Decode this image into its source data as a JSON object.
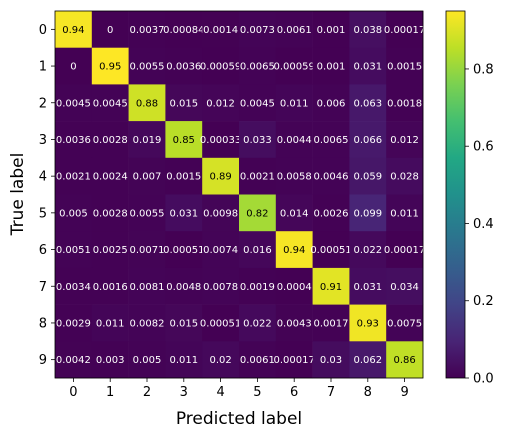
{
  "chart_data": {
    "type": "heatmap",
    "title": "",
    "xlabel": "Predicted label",
    "ylabel": "True label",
    "x_categories": [
      "0",
      "1",
      "2",
      "3",
      "4",
      "5",
      "6",
      "7",
      "8",
      "9"
    ],
    "y_categories": [
      "0",
      "1",
      "2",
      "3",
      "4",
      "5",
      "6",
      "7",
      "8",
      "9"
    ],
    "colormap": "viridis",
    "clim": [
      0,
      0.95
    ],
    "colorbar_ticks": [
      "0.0",
      "0.2",
      "0.4",
      "0.6",
      "0.8"
    ],
    "colorbar_tick_values": [
      0.0,
      0.2,
      0.4,
      0.6,
      0.8
    ],
    "values": [
      [
        0.94,
        0,
        0.0037,
        0.00084,
        0.0014,
        0.0073,
        0.0061,
        0.001,
        0.038,
        0.00017
      ],
      [
        0,
        0.95,
        0.0055,
        0.0036,
        0.00059,
        0.0065,
        0.00059,
        0.001,
        0.031,
        0.0015
      ],
      [
        0.0045,
        0.0045,
        0.88,
        0.015,
        0.012,
        0.0045,
        0.011,
        0.006,
        0.063,
        0.0018
      ],
      [
        0.0036,
        0.0028,
        0.019,
        0.85,
        0.00033,
        0.033,
        0.0044,
        0.0065,
        0.066,
        0.012
      ],
      [
        0.0021,
        0.0024,
        0.007,
        0.0015,
        0.89,
        0.0021,
        0.0058,
        0.0046,
        0.059,
        0.028
      ],
      [
        0.005,
        0.0028,
        0.0055,
        0.031,
        0.0098,
        0.82,
        0.014,
        0.0026,
        0.099,
        0.011
      ],
      [
        0.0051,
        0.0025,
        0.0071,
        0.00051,
        0.0074,
        0.016,
        0.94,
        0.00051,
        0.022,
        0.00017
      ],
      [
        0.0034,
        0.0016,
        0.0081,
        0.0048,
        0.0078,
        0.0019,
        0.0004,
        0.91,
        0.031,
        0.034
      ],
      [
        0.0029,
        0.011,
        0.0082,
        0.015,
        0.00051,
        0.022,
        0.0043,
        0.0017,
        0.93,
        0.0075
      ],
      [
        0.0042,
        0.003,
        0.005,
        0.011,
        0.02,
        0.0061,
        0.00017,
        0.03,
        0.062,
        0.86
      ]
    ],
    "cell_labels": [
      [
        "0.94",
        "0",
        "0.0037",
        "0.00084",
        "0.0014",
        "0.0073",
        "0.0061",
        "0.001",
        "0.038",
        "0.00017"
      ],
      [
        "0",
        "0.95",
        "0.0055",
        "0.0036",
        "0.00059",
        "0.0065",
        "0.00059",
        "0.001",
        "0.031",
        "0.0015"
      ],
      [
        "0.0045",
        "0.0045",
        "0.88",
        "0.015",
        "0.012",
        "0.0045",
        "0.011",
        "0.006",
        "0.063",
        "0.0018"
      ],
      [
        "0.0036",
        "0.0028",
        "0.019",
        "0.85",
        "0.00033",
        "0.033",
        "0.0044",
        "0.0065",
        "0.066",
        "0.012"
      ],
      [
        "0.0021",
        "0.0024",
        "0.007",
        "0.0015",
        "0.89",
        "0.0021",
        "0.0058",
        "0.0046",
        "0.059",
        "0.028"
      ],
      [
        "0.005",
        "0.0028",
        "0.0055",
        "0.031",
        "0.0098",
        "0.82",
        "0.014",
        "0.0026",
        "0.099",
        "0.011"
      ],
      [
        "0.0051",
        "0.0025",
        "0.0071",
        "0.00051",
        "0.0074",
        "0.016",
        "0.94",
        "0.00051",
        "0.022",
        "0.00017"
      ],
      [
        "0.0034",
        "0.0016",
        "0.0081",
        "0.0048",
        "0.0078",
        "0.0019",
        "0.0004",
        "0.91",
        "0.031",
        "0.034"
      ],
      [
        "0.0029",
        "0.011",
        "0.0082",
        "0.015",
        "0.00051",
        "0.022",
        "0.0043",
        "0.0017",
        "0.93",
        "0.0075"
      ],
      [
        "0.0042",
        "0.003",
        "0.005",
        "0.011",
        "0.02",
        "0.0061",
        "0.00017",
        "0.03",
        "0.062",
        "0.86"
      ]
    ]
  }
}
